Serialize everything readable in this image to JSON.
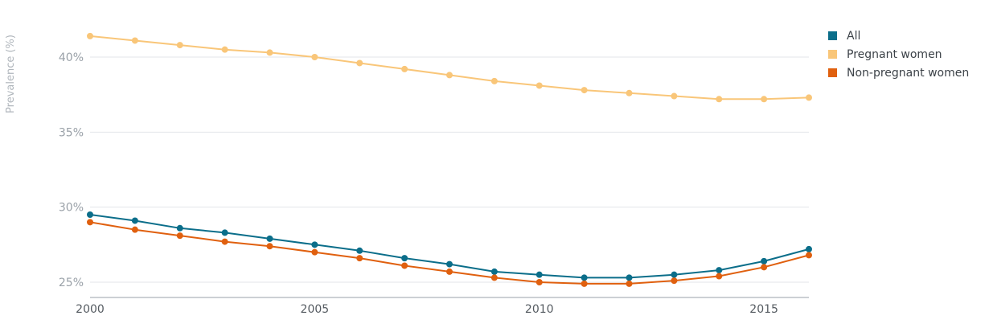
{
  "chart_data": {
    "type": "line",
    "title": "",
    "xlabel": "",
    "ylabel": "Prevalence (%)",
    "x": [
      2000,
      2001,
      2002,
      2003,
      2004,
      2005,
      2006,
      2007,
      2008,
      2009,
      2010,
      2011,
      2012,
      2013,
      2014,
      2015,
      2016
    ],
    "xlim": [
      2000,
      2016
    ],
    "ylim": [
      24,
      42.5
    ],
    "x_ticks": [
      2000,
      2005,
      2010,
      2015
    ],
    "x_tick_labels": [
      "2000",
      "2005",
      "2010",
      "2015"
    ],
    "y_ticks": [
      25,
      30,
      35,
      40
    ],
    "y_tick_labels": [
      "25%",
      "30%",
      "35%",
      "40%"
    ],
    "grid": "horizontal",
    "legend_position": "top-right",
    "series": [
      {
        "name": "All",
        "color": "#0b6e8a",
        "values": [
          29.5,
          29.1,
          28.6,
          28.3,
          27.9,
          27.5,
          27.1,
          26.6,
          26.2,
          25.7,
          25.5,
          25.3,
          25.3,
          25.5,
          25.8,
          26.4,
          27.2
        ]
      },
      {
        "name": "Pregnant women",
        "color": "#f9c679",
        "values": [
          41.4,
          41.1,
          40.8,
          40.5,
          40.3,
          40.0,
          39.6,
          39.2,
          38.8,
          38.4,
          38.1,
          37.8,
          37.6,
          37.4,
          37.2,
          37.2,
          37.3
        ]
      },
      {
        "name": "Non-pregnant women",
        "color": "#e0600f",
        "values": [
          29.0,
          28.5,
          28.1,
          27.7,
          27.4,
          27.0,
          26.6,
          26.1,
          25.7,
          25.3,
          25.0,
          24.9,
          24.9,
          25.1,
          25.4,
          26.0,
          26.8
        ]
      }
    ]
  }
}
